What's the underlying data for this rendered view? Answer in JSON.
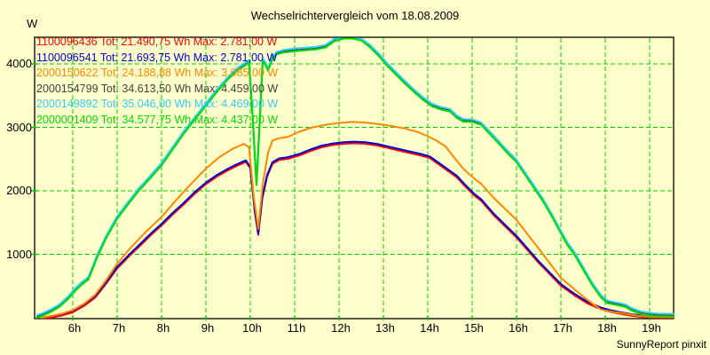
{
  "title": "Wechselrichtervergleich vom 18.08.2009",
  "y_axis_unit": "W",
  "footer": "SunnyReport pinxit",
  "colors": {
    "background": "#ffffcc",
    "grid": "#00cc00",
    "tick": "#00cc00",
    "border": "#000000",
    "text": "#000000"
  },
  "chart_data": {
    "type": "line",
    "title": "Wechselrichtervergleich vom 18.08.2009",
    "ylabel": "W",
    "grid": true,
    "legend_position": "top-left",
    "x_ticks": [
      {
        "h": 6,
        "label": "6h"
      },
      {
        "h": 7,
        "label": "7h"
      },
      {
        "h": 8,
        "label": "8h"
      },
      {
        "h": 9,
        "label": "9h"
      },
      {
        "h": 10,
        "label": "10h"
      },
      {
        "h": 11,
        "label": "11h"
      },
      {
        "h": 12,
        "label": "12h"
      },
      {
        "h": 13,
        "label": "13h"
      },
      {
        "h": 14,
        "label": "14h"
      },
      {
        "h": 15,
        "label": "15h"
      },
      {
        "h": 16,
        "label": "16h"
      },
      {
        "h": 17,
        "label": "17h"
      },
      {
        "h": 18,
        "label": "18h"
      },
      {
        "h": 19,
        "label": "19h"
      }
    ],
    "y_ticks": [
      1000,
      2000,
      3000,
      4000
    ],
    "x_range_hours": [
      5.14,
      19.54
    ],
    "y_range_w": [
      0,
      4430
    ],
    "series": [
      {
        "name": "1100096436",
        "legend": "1100096436 Tot: 21.490,75 Wh Max: 2.781,00 W",
        "tot_wh": "21.490,75",
        "max_w": "2.781,00",
        "color": "#ff0000",
        "base": "low",
        "offset_w": -25
      },
      {
        "name": "1100096541",
        "legend": "1100096541 Tot: 21.693,75 Wh Max: 2.781,00 W",
        "tot_wh": "21.693,75",
        "max_w": "2.781,00",
        "color": "#0000cc",
        "base": "low",
        "offset_w": 0
      },
      {
        "name": "2000150622",
        "legend": "2000150622 Tot: 24.188,88 Wh Max: 3.085,00 W",
        "tot_wh": "24.188,88",
        "max_w": "3.085,00",
        "color": "#ff8800",
        "base": "mid",
        "offset_w": 0
      },
      {
        "name": "2000154799",
        "legend": "2000154799 Tot: 34.613,50 Wh Max: 4.459,00 W",
        "tot_wh": "34.613,50",
        "max_w": "4.459,00",
        "color": "#404040",
        "base": "tall",
        "offset_w": 15
      },
      {
        "name": "2000149892",
        "legend": "2000149892 Tot: 35.046,00 Wh Max: 4.469,00 W",
        "tot_wh": "35.046,00",
        "max_w": "4.469,00",
        "color": "#33ccff",
        "base": "tall",
        "offset_w": 40
      },
      {
        "name": "2000001409",
        "legend": "2000001409 Tot: 34.577,75 Wh Max: 4.437,00 W",
        "tot_wh": "34.577,75",
        "max_w": "4.437,00",
        "color": "#00dd00",
        "base": "tall",
        "offset_w": 0
      }
    ],
    "base_curves": {
      "tall": [
        [
          5.2,
          0
        ],
        [
          5.35,
          40
        ],
        [
          5.5,
          90
        ],
        [
          5.7,
          170
        ],
        [
          5.9,
          300
        ],
        [
          6.05,
          420
        ],
        [
          6.2,
          520
        ],
        [
          6.35,
          600
        ],
        [
          6.55,
          950
        ],
        [
          6.75,
          1250
        ],
        [
          7.0,
          1560
        ],
        [
          7.25,
          1790
        ],
        [
          7.5,
          2010
        ],
        [
          7.75,
          2200
        ],
        [
          8.0,
          2400
        ],
        [
          8.25,
          2650
        ],
        [
          8.5,
          2900
        ],
        [
          8.75,
          3120
        ],
        [
          9.0,
          3340
        ],
        [
          9.25,
          3560
        ],
        [
          9.5,
          3760
        ],
        [
          9.7,
          3890
        ],
        [
          9.85,
          3960
        ],
        [
          9.97,
          4020
        ],
        [
          10.05,
          3200
        ],
        [
          10.14,
          2090
        ],
        [
          10.2,
          2900
        ],
        [
          10.28,
          4040
        ],
        [
          10.33,
          4000
        ],
        [
          10.4,
          3890
        ],
        [
          10.5,
          4080
        ],
        [
          10.6,
          4150
        ],
        [
          10.75,
          4180
        ],
        [
          11.0,
          4200
        ],
        [
          11.25,
          4215
        ],
        [
          11.5,
          4230
        ],
        [
          11.7,
          4260
        ],
        [
          11.9,
          4360
        ],
        [
          12.1,
          4440
        ],
        [
          12.3,
          4435
        ],
        [
          12.5,
          4370
        ],
        [
          12.7,
          4260
        ],
        [
          12.9,
          4120
        ],
        [
          13.1,
          3960
        ],
        [
          13.3,
          3820
        ],
        [
          13.5,
          3680
        ],
        [
          13.7,
          3550
        ],
        [
          13.9,
          3430
        ],
        [
          14.1,
          3330
        ],
        [
          14.3,
          3280
        ],
        [
          14.5,
          3250
        ],
        [
          14.65,
          3150
        ],
        [
          14.8,
          3090
        ],
        [
          15.0,
          3085
        ],
        [
          15.2,
          3040
        ],
        [
          15.5,
          2820
        ],
        [
          15.8,
          2590
        ],
        [
          16.0,
          2450
        ],
        [
          16.3,
          2140
        ],
        [
          16.6,
          1830
        ],
        [
          16.8,
          1590
        ],
        [
          17.0,
          1330
        ],
        [
          17.15,
          1140
        ],
        [
          17.3,
          1000
        ],
        [
          17.5,
          760
        ],
        [
          17.7,
          520
        ],
        [
          17.9,
          320
        ],
        [
          18.05,
          230
        ],
        [
          18.25,
          200
        ],
        [
          18.45,
          170
        ],
        [
          18.6,
          110
        ],
        [
          18.8,
          60
        ],
        [
          19.0,
          35
        ],
        [
          19.2,
          25
        ],
        [
          19.54,
          20
        ]
      ],
      "low": [
        [
          5.3,
          0
        ],
        [
          5.5,
          25
        ],
        [
          5.75,
          60
        ],
        [
          6.0,
          110
        ],
        [
          6.25,
          210
        ],
        [
          6.5,
          340
        ],
        [
          6.75,
          560
        ],
        [
          7.0,
          800
        ],
        [
          7.25,
          980
        ],
        [
          7.5,
          1150
        ],
        [
          7.75,
          1320
        ],
        [
          8.0,
          1480
        ],
        [
          8.25,
          1650
        ],
        [
          8.5,
          1810
        ],
        [
          8.75,
          1980
        ],
        [
          9.0,
          2130
        ],
        [
          9.25,
          2250
        ],
        [
          9.5,
          2350
        ],
        [
          9.7,
          2420
        ],
        [
          9.9,
          2480
        ],
        [
          10.0,
          2380
        ],
        [
          10.1,
          1700
        ],
        [
          10.18,
          1330
        ],
        [
          10.27,
          1900
        ],
        [
          10.38,
          2250
        ],
        [
          10.5,
          2450
        ],
        [
          10.65,
          2510
        ],
        [
          10.85,
          2530
        ],
        [
          11.1,
          2580
        ],
        [
          11.35,
          2650
        ],
        [
          11.6,
          2710
        ],
        [
          11.85,
          2745
        ],
        [
          12.1,
          2765
        ],
        [
          12.35,
          2775
        ],
        [
          12.6,
          2765
        ],
        [
          12.85,
          2740
        ],
        [
          13.1,
          2700
        ],
        [
          13.35,
          2660
        ],
        [
          13.6,
          2620
        ],
        [
          13.85,
          2580
        ],
        [
          14.05,
          2540
        ],
        [
          14.25,
          2440
        ],
        [
          14.45,
          2340
        ],
        [
          14.65,
          2240
        ],
        [
          14.85,
          2090
        ],
        [
          15.05,
          1950
        ],
        [
          15.2,
          1870
        ],
        [
          15.5,
          1630
        ],
        [
          16.0,
          1290
        ],
        [
          16.5,
          890
        ],
        [
          17.0,
          530
        ],
        [
          17.3,
          380
        ],
        [
          17.6,
          250
        ],
        [
          17.9,
          160
        ],
        [
          18.1,
          120
        ],
        [
          18.35,
          85
        ],
        [
          18.6,
          55
        ],
        [
          18.85,
          35
        ],
        [
          19.1,
          22
        ],
        [
          19.54,
          15
        ]
      ],
      "mid": [
        [
          5.3,
          0
        ],
        [
          5.5,
          25
        ],
        [
          5.75,
          65
        ],
        [
          6.0,
          120
        ],
        [
          6.25,
          220
        ],
        [
          6.5,
          360
        ],
        [
          6.75,
          590
        ],
        [
          7.0,
          850
        ],
        [
          7.3,
          1100
        ],
        [
          7.6,
          1320
        ],
        [
          8.0,
          1590
        ],
        [
          8.3,
          1830
        ],
        [
          8.6,
          2060
        ],
        [
          9.0,
          2350
        ],
        [
          9.3,
          2530
        ],
        [
          9.6,
          2660
        ],
        [
          9.85,
          2740
        ],
        [
          9.97,
          2690
        ],
        [
          10.08,
          1900
        ],
        [
          10.18,
          1400
        ],
        [
          10.28,
          2100
        ],
        [
          10.4,
          2600
        ],
        [
          10.5,
          2790
        ],
        [
          10.65,
          2830
        ],
        [
          10.85,
          2850
        ],
        [
          11.1,
          2930
        ],
        [
          11.4,
          3000
        ],
        [
          11.7,
          3040
        ],
        [
          12.0,
          3070
        ],
        [
          12.3,
          3085
        ],
        [
          12.6,
          3075
        ],
        [
          12.9,
          3050
        ],
        [
          13.2,
          3020
        ],
        [
          13.5,
          2980
        ],
        [
          13.8,
          2920
        ],
        [
          14.0,
          2860
        ],
        [
          14.2,
          2790
        ],
        [
          14.4,
          2700
        ],
        [
          14.6,
          2520
        ],
        [
          14.8,
          2350
        ],
        [
          15.0,
          2220
        ],
        [
          15.2,
          2110
        ],
        [
          15.5,
          1880
        ],
        [
          16.0,
          1540
        ],
        [
          16.5,
          1090
        ],
        [
          17.0,
          630
        ],
        [
          17.3,
          450
        ],
        [
          17.6,
          280
        ],
        [
          17.9,
          130
        ],
        [
          18.15,
          95
        ],
        [
          18.4,
          70
        ],
        [
          18.65,
          40
        ],
        [
          18.9,
          20
        ],
        [
          19.2,
          12
        ],
        [
          19.54,
          10
        ]
      ]
    }
  }
}
